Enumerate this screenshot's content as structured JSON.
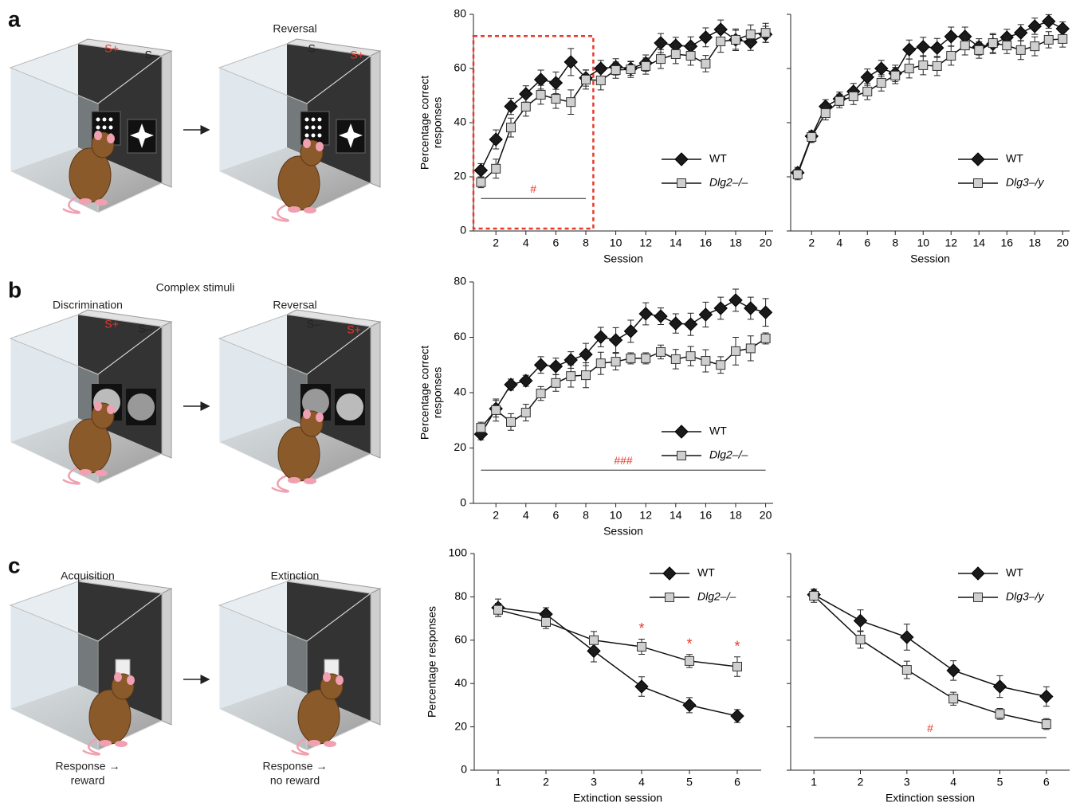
{
  "illustrations": {
    "a": {
      "letter": "a",
      "s_plus": "S+",
      "s_minus": "S–",
      "reversal": "Reversal"
    },
    "b": {
      "letter": "b",
      "title": "Complex stimuli",
      "discrimination": "Discrimination",
      "reversal": "Reversal",
      "s_plus": "S+",
      "s_minus": "S–"
    },
    "c": {
      "letter": "c",
      "acquisition": "Acquisition",
      "extinction": "Extinction",
      "response_reward": [
        "Response →",
        "reward"
      ],
      "response_no_reward": [
        "Response →",
        "no reward"
      ]
    }
  },
  "chart_data": [
    {
      "type": "line",
      "xlabel": "Session",
      "ylabel": [
        "Percentage correct",
        "responses"
      ],
      "x": [
        1,
        2,
        3,
        4,
        5,
        6,
        7,
        8,
        9,
        10,
        11,
        12,
        13,
        14,
        15,
        16,
        17,
        18,
        19,
        20
      ],
      "xlim": [
        0.5,
        20.5
      ],
      "xticks": [
        2,
        4,
        6,
        8,
        10,
        12,
        14,
        16,
        18,
        20
      ],
      "ylim": [
        0,
        80
      ],
      "yticks": [
        0,
        20,
        40,
        60,
        80
      ],
      "show_ytick_labels": true,
      "legend": "lower right",
      "series": [
        {
          "name": "WT",
          "color": "#1a1a1a",
          "marker": "diamond",
          "values": [
            22.4,
            33.8,
            46,
            50.6,
            55.9,
            54.7,
            62.4,
            56.5,
            60,
            60.6,
            60,
            62,
            69.4,
            68.5,
            68.2,
            71.5,
            74.4,
            70.6,
            69.7,
            72.6
          ],
          "errors": [
            2.5,
            3.5,
            3,
            3,
            3.5,
            4,
            5,
            3,
            3,
            3,
            2.5,
            3,
            3.5,
            3,
            3.5,
            3.5,
            3.5,
            3.5,
            3,
            3
          ]
        },
        {
          "name": "Dlg2–/–",
          "color": "#cfcfcf",
          "marker": "square",
          "values": [
            18,
            23,
            38.2,
            45.9,
            50.3,
            48.8,
            47.6,
            55.9,
            55.6,
            59.4,
            59.7,
            60.9,
            63.5,
            65.3,
            64.7,
            61.8,
            70,
            70.6,
            72.6,
            73.2
          ],
          "errors": [
            2,
            3.5,
            3.5,
            3.5,
            3.5,
            3.5,
            4.5,
            3.5,
            3.5,
            3,
            3,
            3,
            3.5,
            3.5,
            3.5,
            3,
            4,
            4,
            3.5,
            3.5
          ]
        }
      ],
      "significance": {
        "label": "#",
        "from": 1,
        "to": 8
      },
      "highlight": {
        "from": 1,
        "to": 8,
        "color": "#e8392b"
      }
    },
    {
      "type": "line",
      "xlabel": "Session",
      "x": [
        1,
        2,
        3,
        4,
        5,
        6,
        7,
        8,
        9,
        10,
        11,
        12,
        13,
        14,
        15,
        16,
        17,
        18,
        19,
        20
      ],
      "xlim": [
        0.5,
        20.5
      ],
      "xticks": [
        2,
        4,
        6,
        8,
        10,
        12,
        14,
        16,
        18,
        20
      ],
      "ylim": [
        0,
        80
      ],
      "yticks": [
        0,
        20,
        40,
        60,
        80
      ],
      "show_ytick_labels": false,
      "legend": "lower right",
      "series": [
        {
          "name": "WT",
          "color": "#1a1a1a",
          "marker": "diamond",
          "values": [
            21.5,
            35,
            46,
            48.8,
            51.5,
            56.8,
            60,
            58.2,
            67,
            68,
            67.6,
            71.8,
            71.8,
            68,
            69,
            71.5,
            73.2,
            75.6,
            77.4,
            74.7
          ],
          "errors": [
            2,
            2,
            2.5,
            2.5,
            3,
            3,
            3,
            3,
            3.5,
            3.5,
            3.5,
            3.5,
            3.5,
            3,
            3.5,
            3,
            3,
            3,
            2.5,
            2.5
          ]
        },
        {
          "name": "Dlg3–/y",
          "color": "#cfcfcf",
          "marker": "square",
          "values": [
            20.9,
            34.7,
            43.5,
            48,
            49.7,
            51.5,
            54.7,
            57.4,
            60,
            61.2,
            60.9,
            64.7,
            68.5,
            66.8,
            69.4,
            68.5,
            66.8,
            68.2,
            70.6,
            70.9
          ],
          "errors": [
            2,
            2,
            2.5,
            2.5,
            3,
            3,
            3,
            3,
            3.5,
            3.5,
            3.5,
            3.5,
            3.5,
            3,
            3.5,
            3,
            3.5,
            3.5,
            3,
            3
          ]
        }
      ]
    },
    {
      "type": "line",
      "xlabel": "Session",
      "ylabel": [
        "Percentage correct",
        "responses"
      ],
      "x": [
        1,
        2,
        3,
        4,
        5,
        6,
        7,
        8,
        9,
        10,
        11,
        12,
        13,
        14,
        15,
        16,
        17,
        18,
        19,
        20
      ],
      "xlim": [
        0.5,
        20.5
      ],
      "xticks": [
        2,
        4,
        6,
        8,
        10,
        12,
        14,
        16,
        18,
        20
      ],
      "ylim": [
        0,
        80
      ],
      "yticks": [
        0,
        20,
        40,
        60,
        80
      ],
      "show_ytick_labels": true,
      "legend": "lower right",
      "series": [
        {
          "name": "WT",
          "color": "#1a1a1a",
          "marker": "diamond",
          "values": [
            25,
            34.2,
            42.9,
            44.3,
            50,
            49.5,
            51.8,
            53.8,
            60.1,
            59,
            62.2,
            68.5,
            67.6,
            65,
            64.7,
            68.2,
            70.5,
            73.4,
            70.5,
            69
          ],
          "errors": [
            2,
            3,
            2,
            2,
            3,
            3,
            3,
            4,
            3.5,
            4.5,
            4,
            4,
            3,
            3.5,
            4,
            4.5,
            4,
            4,
            4,
            5
          ]
        },
        {
          "name": "Dlg2–/–",
          "color": "#cfcfcf",
          "marker": "square",
          "values": [
            27.3,
            33.7,
            29.4,
            32.8,
            39.7,
            43.5,
            46,
            46.3,
            50.6,
            51.2,
            52.4,
            52.4,
            54.7,
            52.1,
            53.2,
            51.5,
            50,
            55,
            56,
            59.6
          ],
          "errors": [
            2,
            4,
            3,
            3,
            2.5,
            3,
            4,
            4.5,
            4,
            3,
            2,
            2,
            2.5,
            3.5,
            3.5,
            4,
            3,
            5,
            4.5,
            2
          ]
        }
      ],
      "significance": {
        "label": "###",
        "from": 1,
        "to": 20
      }
    },
    {
      "type": "line",
      "xlabel": "Extinction session",
      "ylabel": "Percentage responses",
      "x": [
        1,
        2,
        3,
        4,
        5,
        6
      ],
      "xlim": [
        0.5,
        6.5
      ],
      "xticks": [
        1,
        2,
        3,
        4,
        5,
        6
      ],
      "ylim": [
        0,
        100
      ],
      "yticks": [
        0,
        20,
        40,
        60,
        80,
        100
      ],
      "show_ytick_labels": true,
      "legend": "upper right",
      "series": [
        {
          "name": "WT",
          "color": "#1a1a1a",
          "marker": "diamond",
          "values": [
            75,
            72,
            55,
            38.6,
            30,
            25
          ],
          "errors": [
            4,
            3,
            5,
            4.5,
            3.5,
            3
          ]
        },
        {
          "name": "Dlg2–/–",
          "color": "#cfcfcf",
          "marker": "square",
          "values": [
            74,
            68.4,
            60,
            57,
            50.4,
            47.8
          ],
          "errors": [
            3,
            3,
            4,
            3.5,
            3,
            4.5
          ]
        }
      ],
      "markers": {
        "label": "*",
        "x": [
          4,
          5,
          6
        ]
      }
    },
    {
      "type": "line",
      "xlabel": "Extinction session",
      "x": [
        1,
        2,
        3,
        4,
        5,
        6
      ],
      "xlim": [
        0.5,
        6.5
      ],
      "xticks": [
        1,
        2,
        3,
        4,
        5,
        6
      ],
      "ylim": [
        0,
        100
      ],
      "yticks": [
        0,
        20,
        40,
        60,
        80,
        100
      ],
      "show_ytick_labels": false,
      "legend": "upper right",
      "series": [
        {
          "name": "WT",
          "color": "#1a1a1a",
          "marker": "diamond",
          "values": [
            81,
            69,
            61.4,
            46,
            38.6,
            34
          ],
          "errors": [
            2.5,
            5,
            6,
            4.5,
            5,
            4.5
          ]
        },
        {
          "name": "Dlg3–/y",
          "color": "#cfcfcf",
          "marker": "square",
          "values": [
            80.5,
            60.3,
            46.3,
            33,
            26,
            21.3
          ],
          "errors": [
            3,
            4,
            4,
            3,
            2.5,
            2.5
          ]
        }
      ],
      "significance": {
        "label": "#",
        "from": 1,
        "to": 6
      }
    }
  ]
}
